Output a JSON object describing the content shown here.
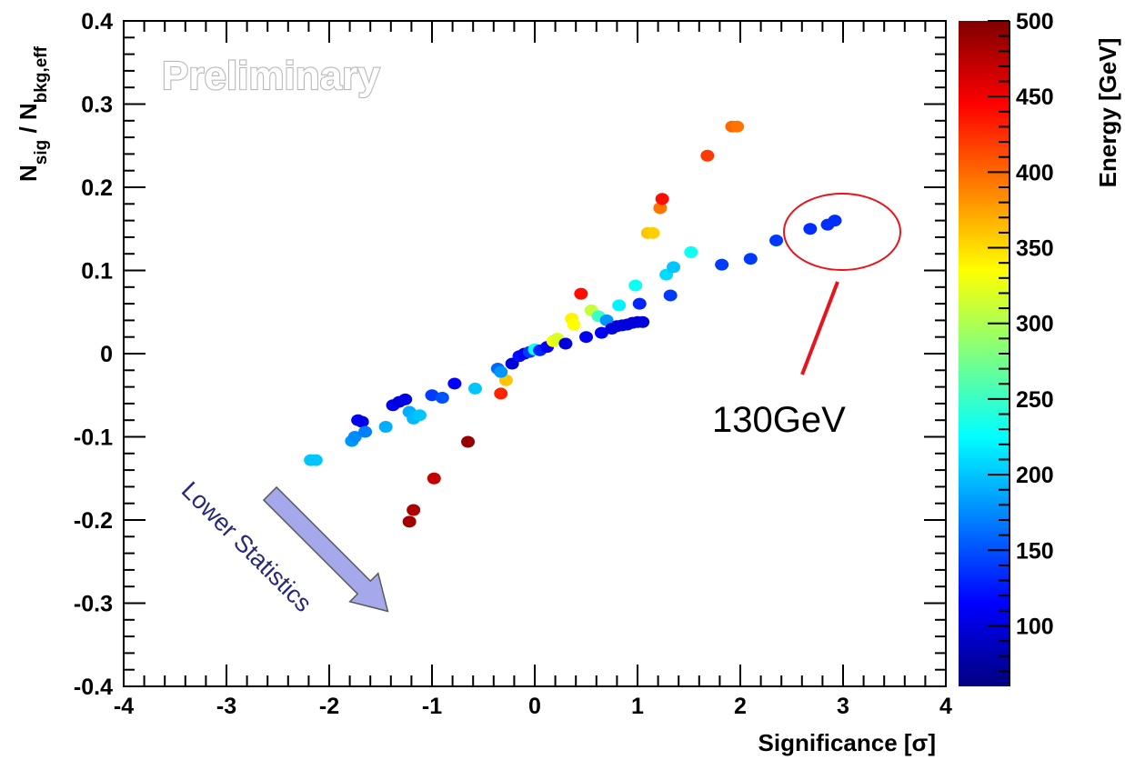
{
  "chart_data": {
    "type": "scatter",
    "xlabel": "Significance [σ]",
    "ylabel": {
      "main": "N",
      "sub1": "sig",
      "mid": " / N",
      "sub2": "bkg,eff"
    },
    "xlim": [
      -4,
      4
    ],
    "ylim": [
      -0.4,
      0.4
    ],
    "x_ticks": [
      "-4",
      "-3",
      "-2",
      "-1",
      "0",
      "1",
      "2",
      "3",
      "4"
    ],
    "y_ticks": [
      "-0.4",
      "-0.3",
      "-0.2",
      "-0.1",
      "0",
      "0.1",
      "0.2",
      "0.3",
      "0.4"
    ],
    "grid": false,
    "colorbar": {
      "label": "Energy [GeV]",
      "range": [
        60,
        500
      ],
      "ticks": [
        "100",
        "150",
        "200",
        "250",
        "300",
        "350",
        "400",
        "450",
        "500"
      ],
      "colormap": [
        "#00007f",
        "#0000ff",
        "#007fff",
        "#00ffff",
        "#7fff7f",
        "#ffff00",
        "#ff7f00",
        "#ff0000",
        "#7f0000"
      ]
    },
    "watermark": "Preliminary",
    "annotations": {
      "circle_label": "130GeV",
      "arrow_label": "Lower Statistics"
    },
    "points": [
      {
        "x": -2.18,
        "y": -0.128,
        "e": 200
      },
      {
        "x": -2.13,
        "y": -0.128,
        "e": 200
      },
      {
        "x": -1.78,
        "y": -0.105,
        "e": 180
      },
      {
        "x": -1.75,
        "y": -0.1,
        "e": 175
      },
      {
        "x": -1.72,
        "y": -0.08,
        "e": 110
      },
      {
        "x": -1.68,
        "y": -0.082,
        "e": 105
      },
      {
        "x": -1.65,
        "y": -0.094,
        "e": 170
      },
      {
        "x": -1.45,
        "y": -0.088,
        "e": 190
      },
      {
        "x": -1.38,
        "y": -0.062,
        "e": 110
      },
      {
        "x": -1.32,
        "y": -0.058,
        "e": 100
      },
      {
        "x": -1.26,
        "y": -0.055,
        "e": 105
      },
      {
        "x": -1.22,
        "y": -0.07,
        "e": 190
      },
      {
        "x": -1.18,
        "y": -0.078,
        "e": 195
      },
      {
        "x": -1.12,
        "y": -0.074,
        "e": 200
      },
      {
        "x": -1.0,
        "y": -0.05,
        "e": 140
      },
      {
        "x": -0.9,
        "y": -0.053,
        "e": 150
      },
      {
        "x": -0.78,
        "y": -0.036,
        "e": 115
      },
      {
        "x": -0.58,
        "y": -0.042,
        "e": 200
      },
      {
        "x": -0.65,
        "y": -0.106,
        "e": 490
      },
      {
        "x": -0.98,
        "y": -0.15,
        "e": 470
      },
      {
        "x": -1.18,
        "y": -0.188,
        "e": 480
      },
      {
        "x": -1.22,
        "y": -0.202,
        "e": 485
      },
      {
        "x": -0.33,
        "y": -0.048,
        "e": 430
      },
      {
        "x": -0.28,
        "y": -0.032,
        "e": 360
      },
      {
        "x": -0.36,
        "y": -0.018,
        "e": 160
      },
      {
        "x": -0.33,
        "y": -0.022,
        "e": 180
      },
      {
        "x": -0.22,
        "y": -0.012,
        "e": 100
      },
      {
        "x": -0.15,
        "y": -0.003,
        "e": 120
      },
      {
        "x": -0.1,
        "y": 0.0,
        "e": 110
      },
      {
        "x": -0.05,
        "y": 0.002,
        "e": 140
      },
      {
        "x": 0.0,
        "y": 0.005,
        "e": 230
      },
      {
        "x": 0.05,
        "y": 0.004,
        "e": 130
      },
      {
        "x": 0.12,
        "y": 0.008,
        "e": 110
      },
      {
        "x": 0.18,
        "y": 0.015,
        "e": 330
      },
      {
        "x": 0.22,
        "y": 0.018,
        "e": 320
      },
      {
        "x": 0.3,
        "y": 0.012,
        "e": 100
      },
      {
        "x": 0.36,
        "y": 0.042,
        "e": 340
      },
      {
        "x": 0.38,
        "y": 0.035,
        "e": 335
      },
      {
        "x": 0.45,
        "y": 0.072,
        "e": 440
      },
      {
        "x": 0.5,
        "y": 0.02,
        "e": 110
      },
      {
        "x": 0.55,
        "y": 0.052,
        "e": 310
      },
      {
        "x": 0.62,
        "y": 0.045,
        "e": 250
      },
      {
        "x": 0.65,
        "y": 0.025,
        "e": 110
      },
      {
        "x": 0.7,
        "y": 0.04,
        "e": 180
      },
      {
        "x": 0.75,
        "y": 0.03,
        "e": 100
      },
      {
        "x": 0.82,
        "y": 0.058,
        "e": 220
      },
      {
        "x": 0.8,
        "y": 0.033,
        "e": 100
      },
      {
        "x": 0.85,
        "y": 0.034,
        "e": 100
      },
      {
        "x": 0.9,
        "y": 0.035,
        "e": 100
      },
      {
        "x": 0.95,
        "y": 0.037,
        "e": 100
      },
      {
        "x": 1.0,
        "y": 0.038,
        "e": 100
      },
      {
        "x": 1.05,
        "y": 0.038,
        "e": 100
      },
      {
        "x": 0.98,
        "y": 0.082,
        "e": 230
      },
      {
        "x": 1.02,
        "y": 0.06,
        "e": 130
      },
      {
        "x": 1.1,
        "y": 0.145,
        "e": 360
      },
      {
        "x": 1.15,
        "y": 0.145,
        "e": 355
      },
      {
        "x": 1.22,
        "y": 0.175,
        "e": 395
      },
      {
        "x": 1.24,
        "y": 0.186,
        "e": 440
      },
      {
        "x": 1.28,
        "y": 0.095,
        "e": 210
      },
      {
        "x": 1.32,
        "y": 0.07,
        "e": 140
      },
      {
        "x": 1.35,
        "y": 0.104,
        "e": 200
      },
      {
        "x": 1.52,
        "y": 0.122,
        "e": 230
      },
      {
        "x": 1.68,
        "y": 0.238,
        "e": 420
      },
      {
        "x": 1.92,
        "y": 0.273,
        "e": 400
      },
      {
        "x": 1.97,
        "y": 0.273,
        "e": 395
      },
      {
        "x": 1.82,
        "y": 0.107,
        "e": 140
      },
      {
        "x": 2.1,
        "y": 0.114,
        "e": 140
      },
      {
        "x": 2.35,
        "y": 0.136,
        "e": 140
      },
      {
        "x": 2.68,
        "y": 0.15,
        "e": 135
      },
      {
        "x": 2.85,
        "y": 0.155,
        "e": 135
      },
      {
        "x": 2.92,
        "y": 0.16,
        "e": 135
      }
    ]
  }
}
